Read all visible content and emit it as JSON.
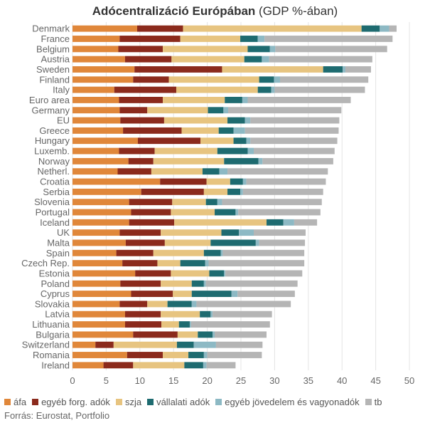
{
  "title": {
    "main": "Adócentralizáció Európában",
    "sub": " (GDP %-ában)"
  },
  "source": "Forrás: Eurostat, Portfolio",
  "chart_data": {
    "type": "bar",
    "orientation": "horizontal",
    "stacked": true,
    "xlim": [
      0,
      50
    ],
    "xticks": [
      0,
      5,
      10,
      15,
      20,
      25,
      30,
      35,
      40,
      45,
      50
    ],
    "grid": true,
    "legend_position": "bottom",
    "categories": [
      "Denmark",
      "France",
      "Belgium",
      "Austria",
      "Sweden",
      "Finland",
      "Italy",
      "Euro area",
      "Germany",
      "EU",
      "Greece",
      "Hungary",
      "Luxemb.",
      "Norway",
      "Netherl.",
      "Croatia",
      "Serbia",
      "Slovenia",
      "Portugal",
      "Iceland",
      "UK",
      "Malta",
      "Spain",
      "Czech Rep.",
      "Estonia",
      "Poland",
      "Cyprus",
      "Slovakia",
      "Latvia",
      "Lithuania",
      "Bulgaria",
      "Switzerland",
      "Romania",
      "Ireland"
    ],
    "series": [
      {
        "name": "áfa",
        "color": "#e0873a",
        "values": [
          9.6,
          7.0,
          6.8,
          7.8,
          9.2,
          9.0,
          6.2,
          6.9,
          7.0,
          7.1,
          7.5,
          9.7,
          6.9,
          8.3,
          6.7,
          13.0,
          10.2,
          8.4,
          8.7,
          8.4,
          7.0,
          7.9,
          6.5,
          7.4,
          9.3,
          7.1,
          8.7,
          7.0,
          7.8,
          7.8,
          9.0,
          3.4,
          8.1,
          4.6
        ]
      },
      {
        "name": "egyéb forg. adók",
        "color": "#8b2a1c",
        "values": [
          6.8,
          9.0,
          6.6,
          6.9,
          13.0,
          5.3,
          9.2,
          6.5,
          4.1,
          6.5,
          8.7,
          9.3,
          5.3,
          3.7,
          5.0,
          6.9,
          9.3,
          6.4,
          5.9,
          6.7,
          6.1,
          5.8,
          5.5,
          5.2,
          5.3,
          6.0,
          6.2,
          4.1,
          5.3,
          5.4,
          6.6,
          2.7,
          5.3,
          4.4
        ]
      },
      {
        "name": "szja",
        "color": "#e7c480",
        "values": [
          26.5,
          8.9,
          12.6,
          10.8,
          15.0,
          13.4,
          12.1,
          9.2,
          9.0,
          9.4,
          5.5,
          4.9,
          9.3,
          10.5,
          7.6,
          3.5,
          3.5,
          5.0,
          6.5,
          13.7,
          9.0,
          6.8,
          7.5,
          3.4,
          5.7,
          4.6,
          2.8,
          3.0,
          5.8,
          2.6,
          3.0,
          9.4,
          3.8,
          7.6
        ]
      },
      {
        "name": "vállalati adók",
        "color": "#1e6b70",
        "values": [
          2.7,
          2.6,
          3.3,
          2.6,
          2.9,
          2.2,
          2.0,
          2.6,
          2.3,
          2.6,
          2.2,
          1.9,
          4.5,
          5.1,
          2.5,
          1.9,
          1.9,
          1.7,
          3.1,
          2.5,
          2.6,
          6.7,
          2.5,
          3.7,
          2.2,
          1.8,
          5.9,
          3.6,
          1.6,
          1.6,
          2.2,
          2.5,
          2.3,
          2.8
        ]
      },
      {
        "name": "egyéb jövedelem és vagyonadók",
        "color": "#8db9c4",
        "values": [
          1.4,
          1.0,
          0.8,
          1.1,
          0.4,
          0.9,
          0.5,
          0.8,
          0.7,
          0.8,
          1.7,
          0.6,
          0.9,
          0.6,
          1.2,
          0.5,
          0.4,
          0.7,
          0.4,
          1.6,
          2.2,
          0.5,
          0.3,
          0.5,
          0.2,
          0.3,
          0.9,
          0.7,
          0.3,
          0.2,
          0.3,
          3.3,
          0.5,
          0.5
        ]
      },
      {
        "name": "tb",
        "color": "#b5b5b5",
        "values": [
          1.1,
          19.0,
          16.6,
          15.3,
          3.8,
          13.1,
          13.4,
          15.3,
          16.8,
          13.2,
          13.9,
          12.9,
          12.0,
          10.5,
          14.9,
          11.8,
          11.9,
          14.8,
          12.2,
          3.4,
          7.7,
          6.8,
          12.1,
          14.2,
          11.4,
          13.6,
          8.5,
          14.0,
          8.8,
          11.7,
          7.7,
          6.9,
          8.1,
          4.3
        ]
      }
    ]
  }
}
